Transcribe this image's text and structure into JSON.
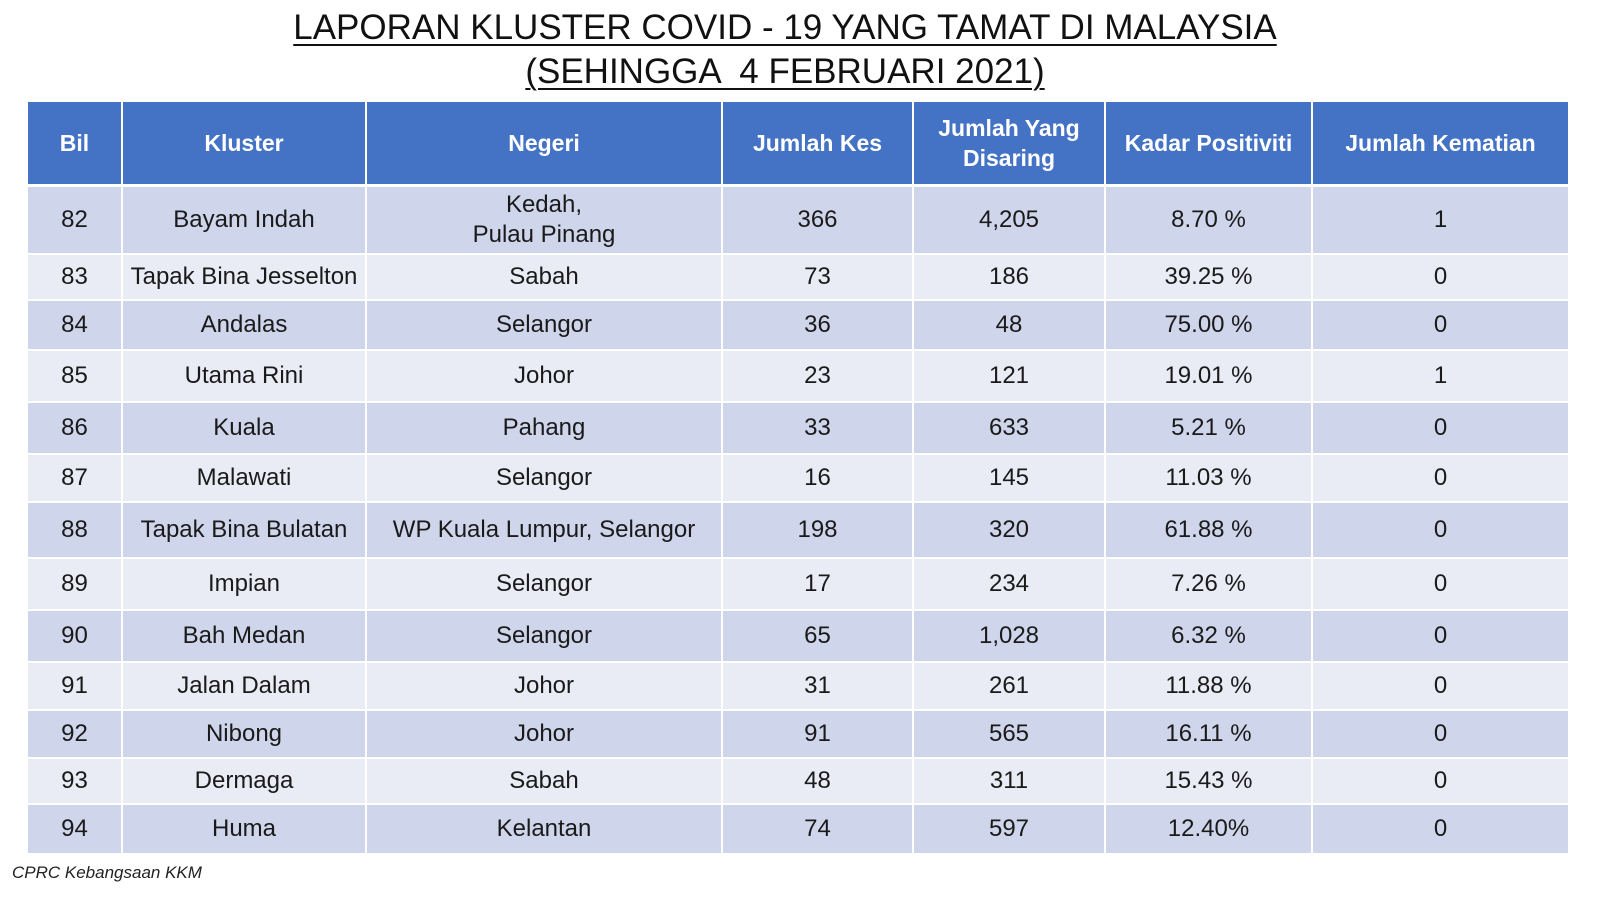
{
  "title": {
    "line1": "LAPORAN KLUSTER COVID - 19 YANG TAMAT DI MALAYSIA",
    "line2": "(SEHINGGA  4 FEBRUARI 2021)"
  },
  "table": {
    "headers": {
      "bil": "Bil",
      "kluster": "Kluster",
      "negeri": "Negeri",
      "jumlah_kes": "Jumlah Kes",
      "jumlah_disaring_1": "Jumlah Yang",
      "jumlah_disaring_2": "Disaring",
      "kadar_positiviti": "Kadar Positiviti",
      "jumlah_kematian": "Jumlah Kematian"
    },
    "rows": [
      {
        "bil": "82",
        "kluster": "Bayam Indah",
        "negeri": "Kedah,",
        "negeri2": "Pulau Pinang",
        "kes": "366",
        "disaring": "4,205",
        "positiviti": "8.70 %",
        "kematian": "1"
      },
      {
        "bil": "83",
        "kluster": "Tapak Bina Jesselton",
        "negeri": "Sabah",
        "kes": "73",
        "disaring": "186",
        "positiviti": "39.25 %",
        "kematian": "0"
      },
      {
        "bil": "84",
        "kluster": "Andalas",
        "negeri": "Selangor",
        "kes": "36",
        "disaring": "48",
        "positiviti": "75.00 %",
        "kematian": "0"
      },
      {
        "bil": "85",
        "kluster": "Utama Rini",
        "negeri": "Johor",
        "kes": "23",
        "disaring": "121",
        "positiviti": "19.01 %",
        "kematian": "1"
      },
      {
        "bil": "86",
        "kluster": "Kuala",
        "negeri": "Pahang",
        "kes": "33",
        "disaring": "633",
        "positiviti": "5.21 %",
        "kematian": "0"
      },
      {
        "bil": "87",
        "kluster": "Malawati",
        "negeri": "Selangor",
        "kes": "16",
        "disaring": "145",
        "positiviti": "11.03 %",
        "kematian": "0"
      },
      {
        "bil": "88",
        "kluster": "Tapak Bina Bulatan",
        "negeri": "WP Kuala Lumpur, Selangor",
        "kes": "198",
        "disaring": "320",
        "positiviti": "61.88 %",
        "kematian": "0"
      },
      {
        "bil": "89",
        "kluster": "Impian",
        "negeri": "Selangor",
        "kes": "17",
        "disaring": "234",
        "positiviti": "7.26 %",
        "kematian": "0"
      },
      {
        "bil": "90",
        "kluster": "Bah Medan",
        "negeri": "Selangor",
        "kes": "65",
        "disaring": "1,028",
        "positiviti": "6.32 %",
        "kematian": "0"
      },
      {
        "bil": "91",
        "kluster": "Jalan Dalam",
        "negeri": "Johor",
        "kes": "31",
        "disaring": "261",
        "positiviti": "11.88 %",
        "kematian": "0"
      },
      {
        "bil": "92",
        "kluster": "Nibong",
        "negeri": "Johor",
        "kes": "91",
        "disaring": "565",
        "positiviti": "16.11 %",
        "kematian": "0"
      },
      {
        "bil": "93",
        "kluster": "Dermaga",
        "negeri": "Sabah",
        "kes": "48",
        "disaring": "311",
        "positiviti": "15.43 %",
        "kematian": "0"
      },
      {
        "bil": "94",
        "kluster": "Huma",
        "negeri": "Kelantan",
        "kes": "74",
        "disaring": "597",
        "positiviti": "12.40%",
        "kematian": "0"
      }
    ]
  },
  "colors": {
    "header_bg": "#4472c4",
    "row_dark": "#cfd5ea",
    "row_light": "#e9ebf5"
  },
  "footer": "CPRC Kebangsaan KKM"
}
